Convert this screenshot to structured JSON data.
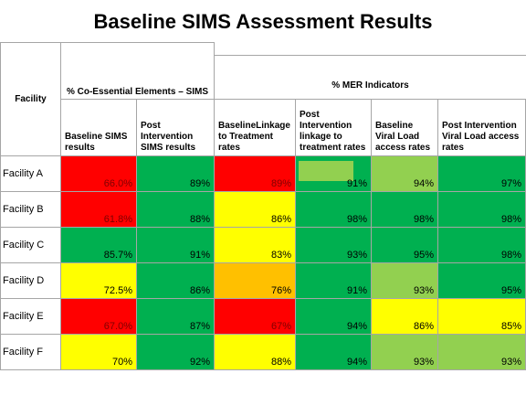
{
  "title": "Baseline SIMS Assessment Results",
  "headers": {
    "facility": "Facility",
    "group_sims": "% Co-Essential Elements – SIMS",
    "group_mer": "% MER Indicators",
    "columns": [
      "Baseline SIMS results",
      "Post Intervention SIMS results",
      "BaselineLinkage to Treatment rates",
      "Post Intervention linkage to treatment rates",
      "Baseline Viral Load access rates",
      "Post Intervention Viral Load access rates"
    ]
  },
  "colors": {
    "red": "#ff0000",
    "green": "#00b050",
    "yellow": "#ffff00",
    "lime": "#92d050",
    "orange": "#ffc000"
  },
  "rows": [
    {
      "facility": "Facility A",
      "values": [
        "66.0%",
        "89%",
        "89%",
        "91%",
        "94%",
        "97%"
      ],
      "colors": [
        "red",
        "green",
        "red",
        "green",
        "lime",
        "green"
      ]
    },
    {
      "facility": "Facility B",
      "values": [
        "61.8%",
        "88%",
        "86%",
        "98%",
        "98%",
        "98%"
      ],
      "colors": [
        "red",
        "green",
        "yellow",
        "green",
        "green",
        "green"
      ]
    },
    {
      "facility": "Facility C",
      "values": [
        "85.7%",
        "91%",
        "83%",
        "93%",
        "95%",
        "98%"
      ],
      "colors": [
        "green",
        "green",
        "yellow",
        "green",
        "green",
        "green"
      ]
    },
    {
      "facility": "Facility D",
      "values": [
        "72.5%",
        "86%",
        "76%",
        "91%",
        "93%",
        "95%"
      ],
      "colors": [
        "yellow",
        "green",
        "orange",
        "green",
        "lime",
        "green"
      ]
    },
    {
      "facility": "Facility E",
      "values": [
        "67.0%",
        "87%",
        "67%",
        "94%",
        "86%",
        "85%"
      ],
      "colors": [
        "red",
        "green",
        "red",
        "green",
        "yellow",
        "yellow"
      ]
    },
    {
      "facility": "Facility F",
      "values": [
        "70%",
        "92%",
        "88%",
        "94%",
        "93%",
        "93%"
      ],
      "colors": [
        "yellow",
        "green",
        "yellow",
        "green",
        "lime",
        "lime"
      ]
    }
  ]
}
